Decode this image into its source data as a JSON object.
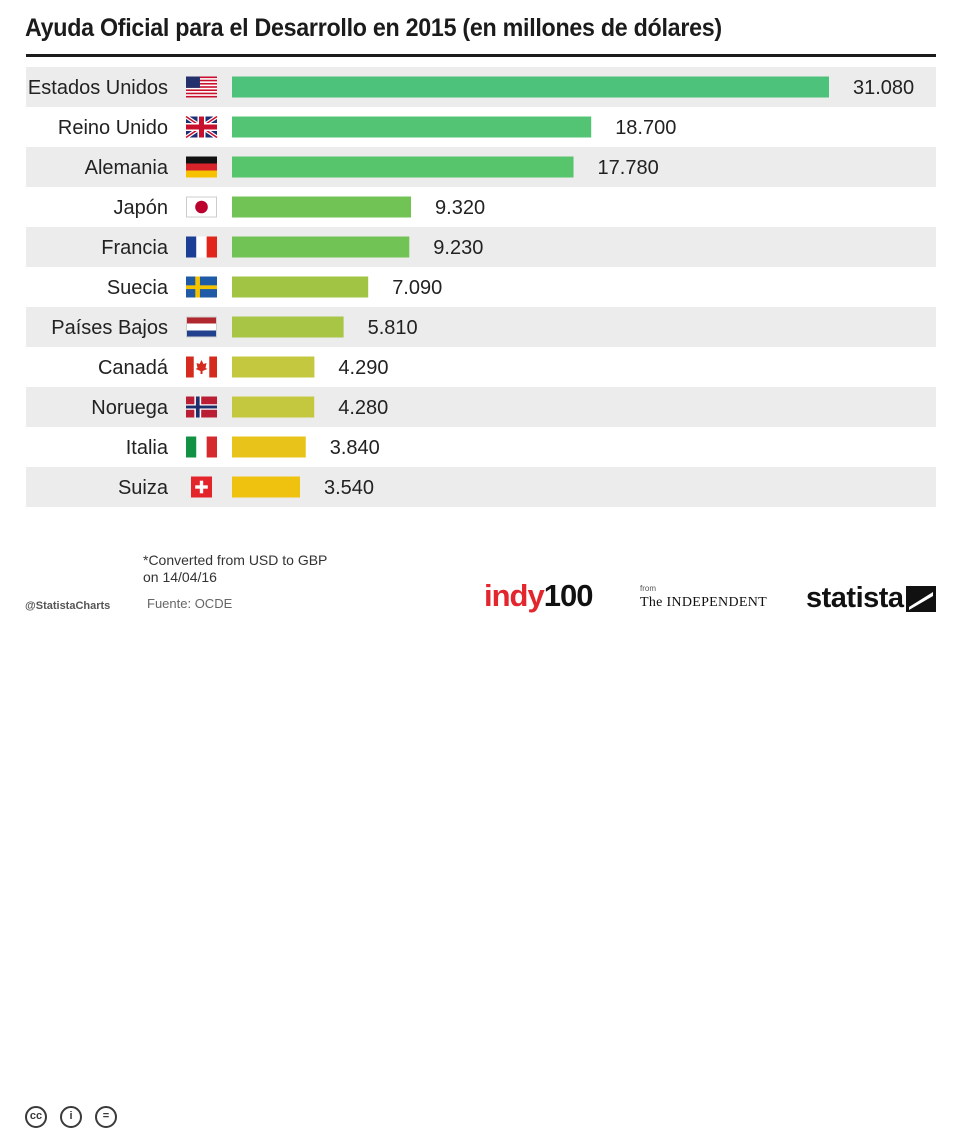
{
  "title": "Ayuda Oficial para el Desarrollo en 2015 (en millones de dólares)",
  "chart_data": {
    "type": "bar",
    "orientation": "horizontal",
    "categories": [
      "Estados Unidos",
      "Reino Unido",
      "Alemania",
      "Japón",
      "Francia",
      "Suecia",
      "Países Bajos",
      "Canadá",
      "Noruega",
      "Italia",
      "Suiza"
    ],
    "values": [
      31080,
      18700,
      17780,
      9320,
      9230,
      7090,
      5810,
      4290,
      4280,
      3840,
      3540
    ],
    "value_labels": [
      "31.080",
      "18.700",
      "17.780",
      "9.320",
      "9.230",
      "7.090",
      "5.810",
      "4.290",
      "4.280",
      "3.840",
      "3.540"
    ],
    "flags": [
      "us-flag-icon",
      "uk-flag-icon",
      "germany-flag-icon",
      "japan-flag-icon",
      "france-flag-icon",
      "sweden-flag-icon",
      "netherlands-flag-icon",
      "canada-flag-icon",
      "norway-flag-icon",
      "italy-flag-icon",
      "switzerland-flag-icon"
    ],
    "bar_colors": [
      "#4dc27a",
      "#52c474",
      "#57c56c",
      "#71c356",
      "#72c355",
      "#a1c444",
      "#a9c546",
      "#c3c83f",
      "#c3c83f",
      "#e8c41a",
      "#efc20f"
    ],
    "row_background_alternating": [
      "#ececec",
      "#ffffff"
    ],
    "xlim": [
      0,
      31080
    ],
    "grid": false,
    "legend": "none"
  },
  "footer": {
    "note": "*Converted from USD to GBP on 14/04/16",
    "source": "Fuente: OCDE",
    "handle": "@StatistaCharts",
    "cc_icons": [
      "cc-icon",
      "by-icon",
      "nd-icon"
    ],
    "cc_glyphs": [
      "cc",
      "i",
      "="
    ],
    "indy_brand": "indy",
    "indy_number": "100",
    "from_label": "from",
    "independent_label": "The INDEPENDENT",
    "statista_label": "statista"
  }
}
